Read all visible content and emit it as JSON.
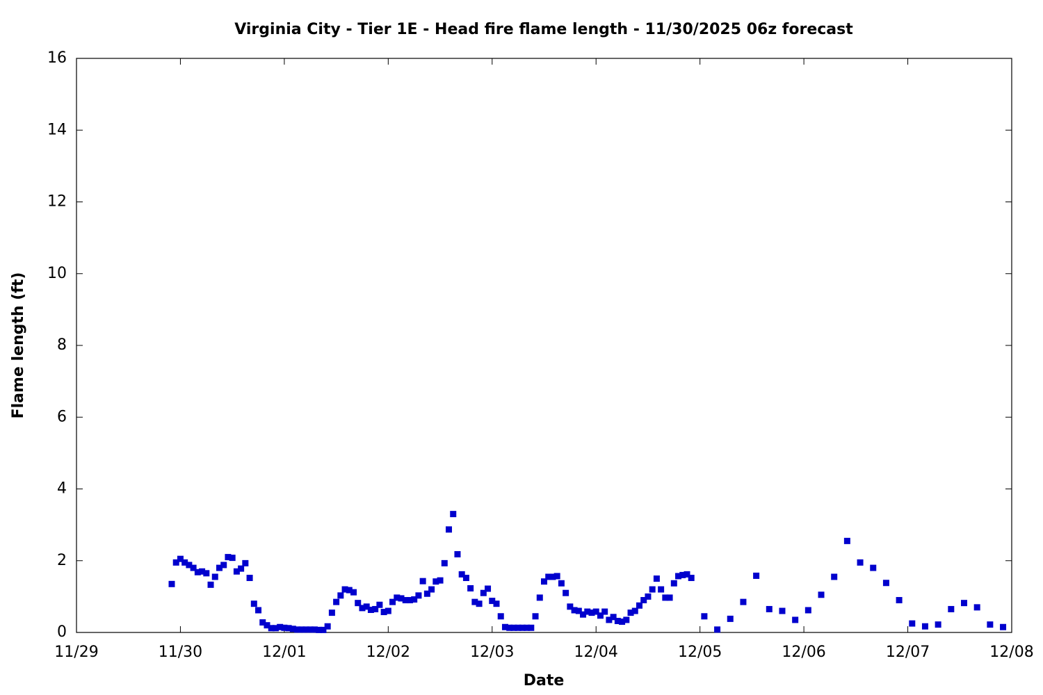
{
  "chart_data": {
    "type": "scatter",
    "title": "Virginia City - Tier 1E - Head fire flame length - 11/30/2025 06z forecast",
    "xlabel": "Date",
    "ylabel": "Flame length (ft)",
    "series": [
      {
        "color": "#0000cd",
        "x": [
          22,
          23,
          24,
          25,
          26,
          27,
          28,
          29,
          30,
          31,
          32,
          33,
          34,
          35,
          36,
          37,
          38,
          39,
          40,
          41,
          42,
          43,
          44,
          45,
          46,
          47,
          48,
          49,
          50,
          51,
          52,
          53,
          54,
          55,
          56,
          57,
          58,
          59,
          60,
          61,
          62,
          63,
          64,
          65,
          66,
          67,
          68,
          69,
          70,
          71,
          72,
          73,
          74,
          75,
          76,
          77,
          78,
          79,
          80,
          81,
          82,
          83,
          84,
          85,
          86,
          87,
          88,
          89,
          90,
          91,
          92,
          93,
          94,
          95,
          96,
          97,
          98,
          99,
          100,
          101,
          102,
          103,
          104,
          105,
          106,
          107,
          108,
          109,
          110,
          111,
          112,
          113,
          114,
          115,
          116,
          117,
          118,
          119,
          120,
          121,
          122,
          123,
          124,
          125,
          126,
          127,
          128,
          129,
          130,
          131,
          132,
          133,
          134,
          135,
          136,
          137,
          138,
          139,
          140,
          141,
          142,
          145,
          148,
          151,
          154,
          157,
          160,
          163,
          166,
          169,
          172,
          175,
          178,
          181,
          184,
          187,
          190,
          193,
          196,
          199,
          202,
          205,
          208,
          211,
          214
        ],
        "values": [
          1.35,
          1.95,
          2.05,
          1.95,
          1.88,
          1.8,
          1.68,
          1.7,
          1.65,
          1.33,
          1.55,
          1.8,
          1.88,
          2.1,
          2.08,
          1.7,
          1.78,
          1.93,
          1.52,
          0.8,
          0.62,
          0.28,
          0.2,
          0.12,
          0.12,
          0.15,
          0.13,
          0.12,
          0.1,
          0.08,
          0.08,
          0.08,
          0.08,
          0.08,
          0.07,
          0.07,
          0.17,
          0.55,
          0.85,
          1.03,
          1.2,
          1.18,
          1.12,
          0.82,
          0.68,
          0.72,
          0.63,
          0.65,
          0.77,
          0.57,
          0.6,
          0.85,
          0.97,
          0.95,
          0.9,
          0.9,
          0.92,
          1.03,
          1.43,
          1.08,
          1.2,
          1.42,
          1.45,
          1.93,
          2.87,
          3.3,
          2.18,
          1.62,
          1.52,
          1.23,
          0.85,
          0.8,
          1.1,
          1.22,
          0.88,
          0.8,
          0.45,
          0.15,
          0.13,
          0.13,
          0.13,
          0.13,
          0.13,
          0.13,
          0.45,
          0.97,
          1.42,
          1.55,
          1.55,
          1.57,
          1.37,
          1.1,
          0.72,
          0.62,
          0.6,
          0.5,
          0.58,
          0.55,
          0.58,
          0.47,
          0.58,
          0.35,
          0.43,
          0.32,
          0.3,
          0.35,
          0.55,
          0.6,
          0.75,
          0.9,
          1.0,
          1.2,
          1.5,
          1.2,
          0.97,
          0.97,
          1.37,
          1.57,
          1.6,
          1.62,
          1.52,
          0.45,
          0.08,
          0.38,
          0.85,
          1.58,
          0.65,
          0.6,
          0.35,
          0.62,
          1.05,
          1.55,
          2.55,
          1.95,
          1.8,
          1.38,
          0.9,
          0.25,
          0.17,
          0.22,
          0.65,
          0.82,
          0.7,
          0.22,
          0.15
        ]
      }
    ],
    "xlim": [
      0,
      216
    ],
    "xticks": [
      {
        "value": 0,
        "label": "11/29"
      },
      {
        "value": 24,
        "label": "11/30"
      },
      {
        "value": 48,
        "label": "12/01"
      },
      {
        "value": 72,
        "label": "12/02"
      },
      {
        "value": 96,
        "label": "12/03"
      },
      {
        "value": 120,
        "label": "12/04"
      },
      {
        "value": 144,
        "label": "12/05"
      },
      {
        "value": 168,
        "label": "12/06"
      },
      {
        "value": 192,
        "label": "12/07"
      },
      {
        "value": 216,
        "label": "12/08"
      }
    ],
    "ylim": [
      0,
      16
    ],
    "yticks": [
      0,
      2,
      4,
      6,
      8,
      10,
      12,
      14,
      16
    ],
    "grid": false
  }
}
